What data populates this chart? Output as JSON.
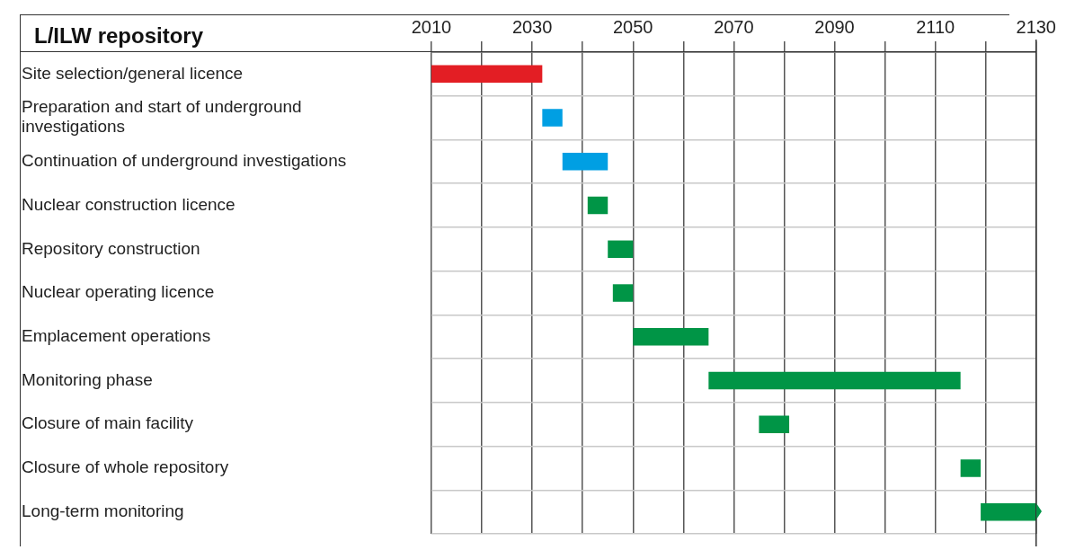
{
  "chart_data": {
    "type": "bar",
    "orientation": "horizontal",
    "title": "L/ILW repository",
    "categories": [
      "Site selection/general licence",
      "Preparation and start of underground investigations",
      "Continuation of underground investigations",
      "Nuclear construction licence",
      "Repository construction",
      "Nuclear operating licence",
      "Emplacement operations",
      "Monitoring phase",
      "Closure of main facility",
      "Closure of whole repository",
      "Long-term monitoring"
    ],
    "base": [
      2010,
      2032,
      2036,
      2041,
      2045,
      2046,
      2050,
      2065,
      2075,
      2115,
      2119
    ],
    "values": [
      22,
      4,
      9,
      4,
      5,
      4,
      15,
      50,
      6,
      4,
      11
    ],
    "colors": [
      "#e31e24",
      "#009fe3",
      "#009fe3",
      "#009546",
      "#009546",
      "#009546",
      "#009546",
      "#009546",
      "#009546",
      "#009546",
      "#009546"
    ],
    "xlim": [
      2010,
      2130
    ],
    "xticks": [
      2010,
      {
        "value": 2020,
        "label": null
      },
      2030,
      {
        "value": 2040,
        "label": null
      },
      2050,
      {
        "value": 2060,
        "label": null
      },
      2070,
      {
        "value": 2080,
        "label": null
      },
      2090,
      {
        "value": 2100,
        "label": null
      },
      2110,
      {
        "value": 2120,
        "label": null
      },
      2130
    ],
    "grid": true,
    "legend": false
  }
}
